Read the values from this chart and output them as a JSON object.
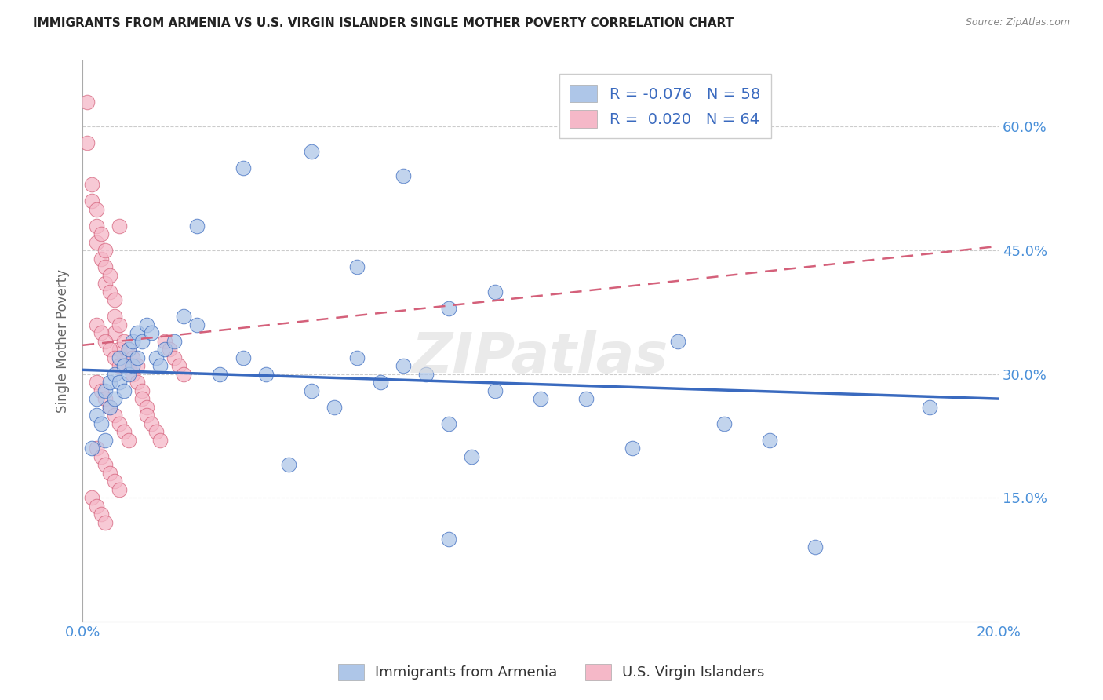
{
  "title": "IMMIGRANTS FROM ARMENIA VS U.S. VIRGIN ISLANDER SINGLE MOTHER POVERTY CORRELATION CHART",
  "source": "Source: ZipAtlas.com",
  "ylabel": "Single Mother Poverty",
  "xlim": [
    0.0,
    0.2
  ],
  "ylim": [
    0.0,
    0.68
  ],
  "yticks_right": [
    0.15,
    0.3,
    0.45,
    0.6
  ],
  "yticks_right_labels": [
    "15.0%",
    "30.0%",
    "45.0%",
    "60.0%"
  ],
  "blue_R": "-0.076",
  "blue_N": "58",
  "pink_R": "0.020",
  "pink_N": "64",
  "blue_color": "#aec6e8",
  "pink_color": "#f5b8c8",
  "blue_line_color": "#3a6abf",
  "pink_line_color": "#d4607a",
  "legend_label_blue": "Immigrants from Armenia",
  "legend_label_pink": "U.S. Virgin Islanders",
  "blue_line_x0": 0.0,
  "blue_line_y0": 0.305,
  "blue_line_x1": 0.2,
  "blue_line_y1": 0.27,
  "pink_line_x0": 0.0,
  "pink_line_y0": 0.335,
  "pink_line_x1": 0.2,
  "pink_line_y1": 0.455,
  "blue_x": [
    0.002,
    0.003,
    0.003,
    0.004,
    0.005,
    0.005,
    0.006,
    0.006,
    0.007,
    0.007,
    0.008,
    0.008,
    0.009,
    0.009,
    0.01,
    0.01,
    0.011,
    0.011,
    0.012,
    0.012,
    0.013,
    0.014,
    0.015,
    0.016,
    0.017,
    0.018,
    0.02,
    0.022,
    0.025,
    0.03,
    0.035,
    0.04,
    0.045,
    0.05,
    0.055,
    0.06,
    0.065,
    0.07,
    0.075,
    0.08,
    0.085,
    0.09,
    0.1,
    0.11,
    0.12,
    0.13,
    0.14,
    0.15,
    0.16,
    0.185,
    0.06,
    0.08,
    0.025,
    0.035,
    0.05,
    0.07,
    0.08,
    0.09
  ],
  "blue_y": [
    0.21,
    0.25,
    0.27,
    0.24,
    0.22,
    0.28,
    0.26,
    0.29,
    0.27,
    0.3,
    0.29,
    0.32,
    0.28,
    0.31,
    0.3,
    0.33,
    0.31,
    0.34,
    0.32,
    0.35,
    0.34,
    0.36,
    0.35,
    0.32,
    0.31,
    0.33,
    0.34,
    0.37,
    0.36,
    0.3,
    0.32,
    0.3,
    0.19,
    0.28,
    0.26,
    0.32,
    0.29,
    0.31,
    0.3,
    0.24,
    0.2,
    0.28,
    0.27,
    0.27,
    0.21,
    0.34,
    0.24,
    0.22,
    0.09,
    0.26,
    0.43,
    0.1,
    0.48,
    0.55,
    0.57,
    0.54,
    0.38,
    0.4
  ],
  "pink_x": [
    0.001,
    0.001,
    0.002,
    0.002,
    0.003,
    0.003,
    0.003,
    0.004,
    0.004,
    0.005,
    0.005,
    0.005,
    0.006,
    0.006,
    0.007,
    0.007,
    0.007,
    0.008,
    0.008,
    0.008,
    0.009,
    0.009,
    0.01,
    0.01,
    0.011,
    0.011,
    0.012,
    0.012,
    0.013,
    0.013,
    0.014,
    0.014,
    0.015,
    0.016,
    0.017,
    0.018,
    0.019,
    0.02,
    0.021,
    0.022,
    0.003,
    0.004,
    0.005,
    0.006,
    0.007,
    0.008,
    0.009,
    0.01,
    0.003,
    0.004,
    0.005,
    0.006,
    0.007,
    0.008,
    0.003,
    0.004,
    0.005,
    0.006,
    0.007,
    0.008,
    0.002,
    0.003,
    0.004,
    0.005
  ],
  "pink_y": [
    0.63,
    0.58,
    0.53,
    0.51,
    0.5,
    0.48,
    0.46,
    0.47,
    0.44,
    0.43,
    0.45,
    0.41,
    0.4,
    0.42,
    0.39,
    0.37,
    0.35,
    0.36,
    0.48,
    0.33,
    0.34,
    0.32,
    0.31,
    0.33,
    0.3,
    0.32,
    0.29,
    0.31,
    0.28,
    0.27,
    0.26,
    0.25,
    0.24,
    0.23,
    0.22,
    0.34,
    0.33,
    0.32,
    0.31,
    0.3,
    0.29,
    0.28,
    0.27,
    0.26,
    0.25,
    0.24,
    0.23,
    0.22,
    0.21,
    0.2,
    0.19,
    0.18,
    0.17,
    0.16,
    0.36,
    0.35,
    0.34,
    0.33,
    0.32,
    0.31,
    0.15,
    0.14,
    0.13,
    0.12
  ]
}
